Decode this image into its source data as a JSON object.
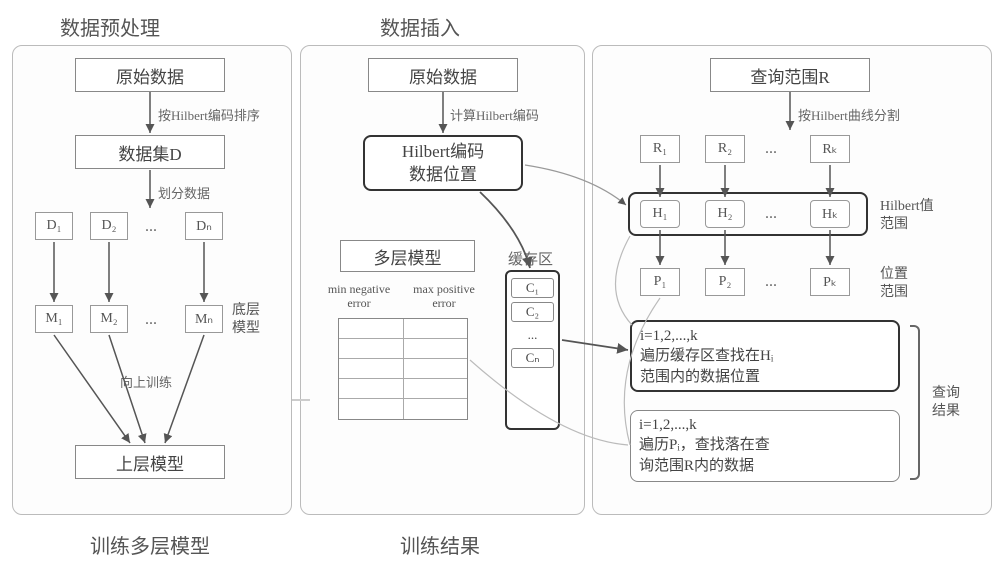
{
  "colors": {
    "text": "#444444",
    "border": "#888888",
    "light_border": "#bbbbbb",
    "bg": "#ffffff"
  },
  "sections": {
    "preprocess": {
      "title": "数据预处理",
      "bottom_title": "训练多层模型"
    },
    "insert": {
      "title": "数据插入",
      "bottom_title": "训练结果"
    },
    "query": {
      "title": "查询结果"
    }
  },
  "preprocess": {
    "raw": "原始数据",
    "edge_sort": "按Hilbert编码排序",
    "dataset": "数据集D",
    "edge_split": "划分数据",
    "D": [
      "D₁",
      "D₂",
      "Dₙ"
    ],
    "M": [
      "M₁",
      "M₂",
      "Mₙ"
    ],
    "bottom_model_label": "底层\n模型",
    "train_up": "向上训练",
    "upper_model": "上层模型"
  },
  "insert": {
    "raw": "原始数据",
    "edge_calc": "计算Hilbert编码",
    "hilbert_box": "Hilbert编码\n数据位置",
    "multilevel": "多层模型",
    "err_table": {
      "col1": "min negative\nerror",
      "col2": "max positive\nerror",
      "rows": 4
    },
    "cache_title": "缓存区",
    "cache": [
      "C₁",
      "C₂",
      "...",
      "Cₙ"
    ]
  },
  "query": {
    "range_box": "查询范围R",
    "edge_split": "按Hilbert曲线分割",
    "R": [
      "R₁",
      "R₂",
      "Rₖ"
    ],
    "H": [
      "H₁",
      "H₂",
      "Hₖ"
    ],
    "H_label": "Hilbert值\n范围",
    "P": [
      "P₁",
      "P₂",
      "Pₖ"
    ],
    "P_label": "位置\n范围",
    "step1": "i=1,2,...,k\n遍历缓存区查找在Hᵢ\n范围内的数据位置",
    "step2": "i=1,2,...,k\n遍历Pᵢ，查找落在查\n询范围R内的数据",
    "result_label": "查询\n结果"
  }
}
